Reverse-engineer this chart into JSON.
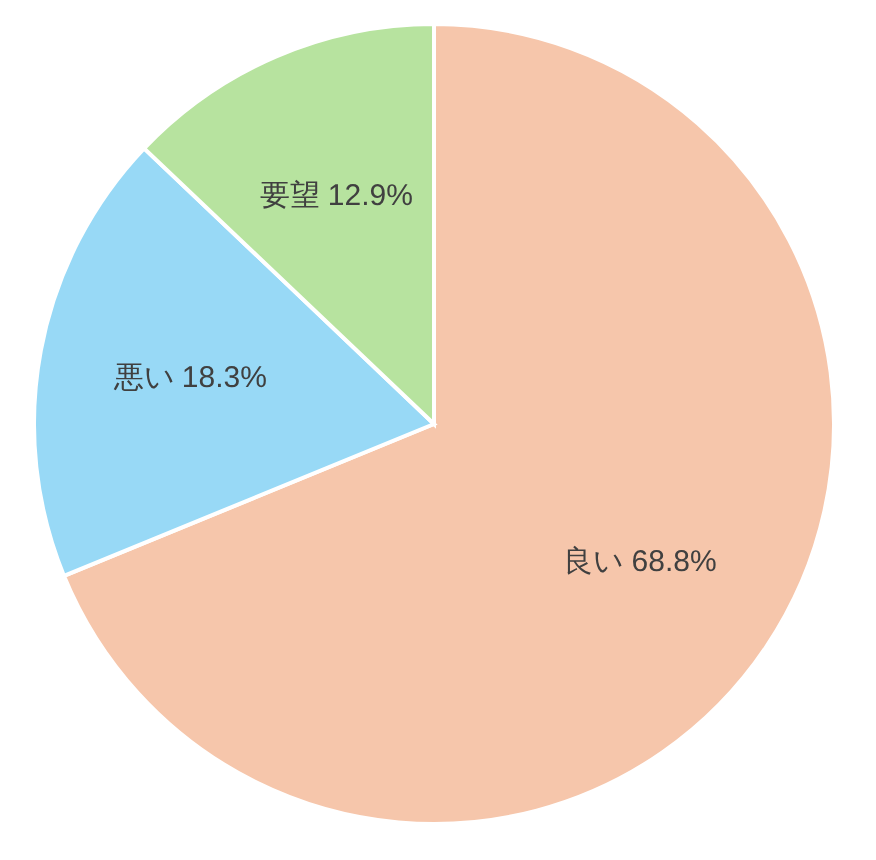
{
  "chart_data": {
    "type": "pie",
    "categories": [
      "良い",
      "悪い",
      "要望"
    ],
    "values": [
      68.8,
      18.3,
      12.9
    ],
    "colors": [
      "#f6c6ab",
      "#98d9f6",
      "#b7e39f"
    ],
    "value_labels": [
      "68.8%",
      "18.3%",
      "12.9%"
    ]
  }
}
